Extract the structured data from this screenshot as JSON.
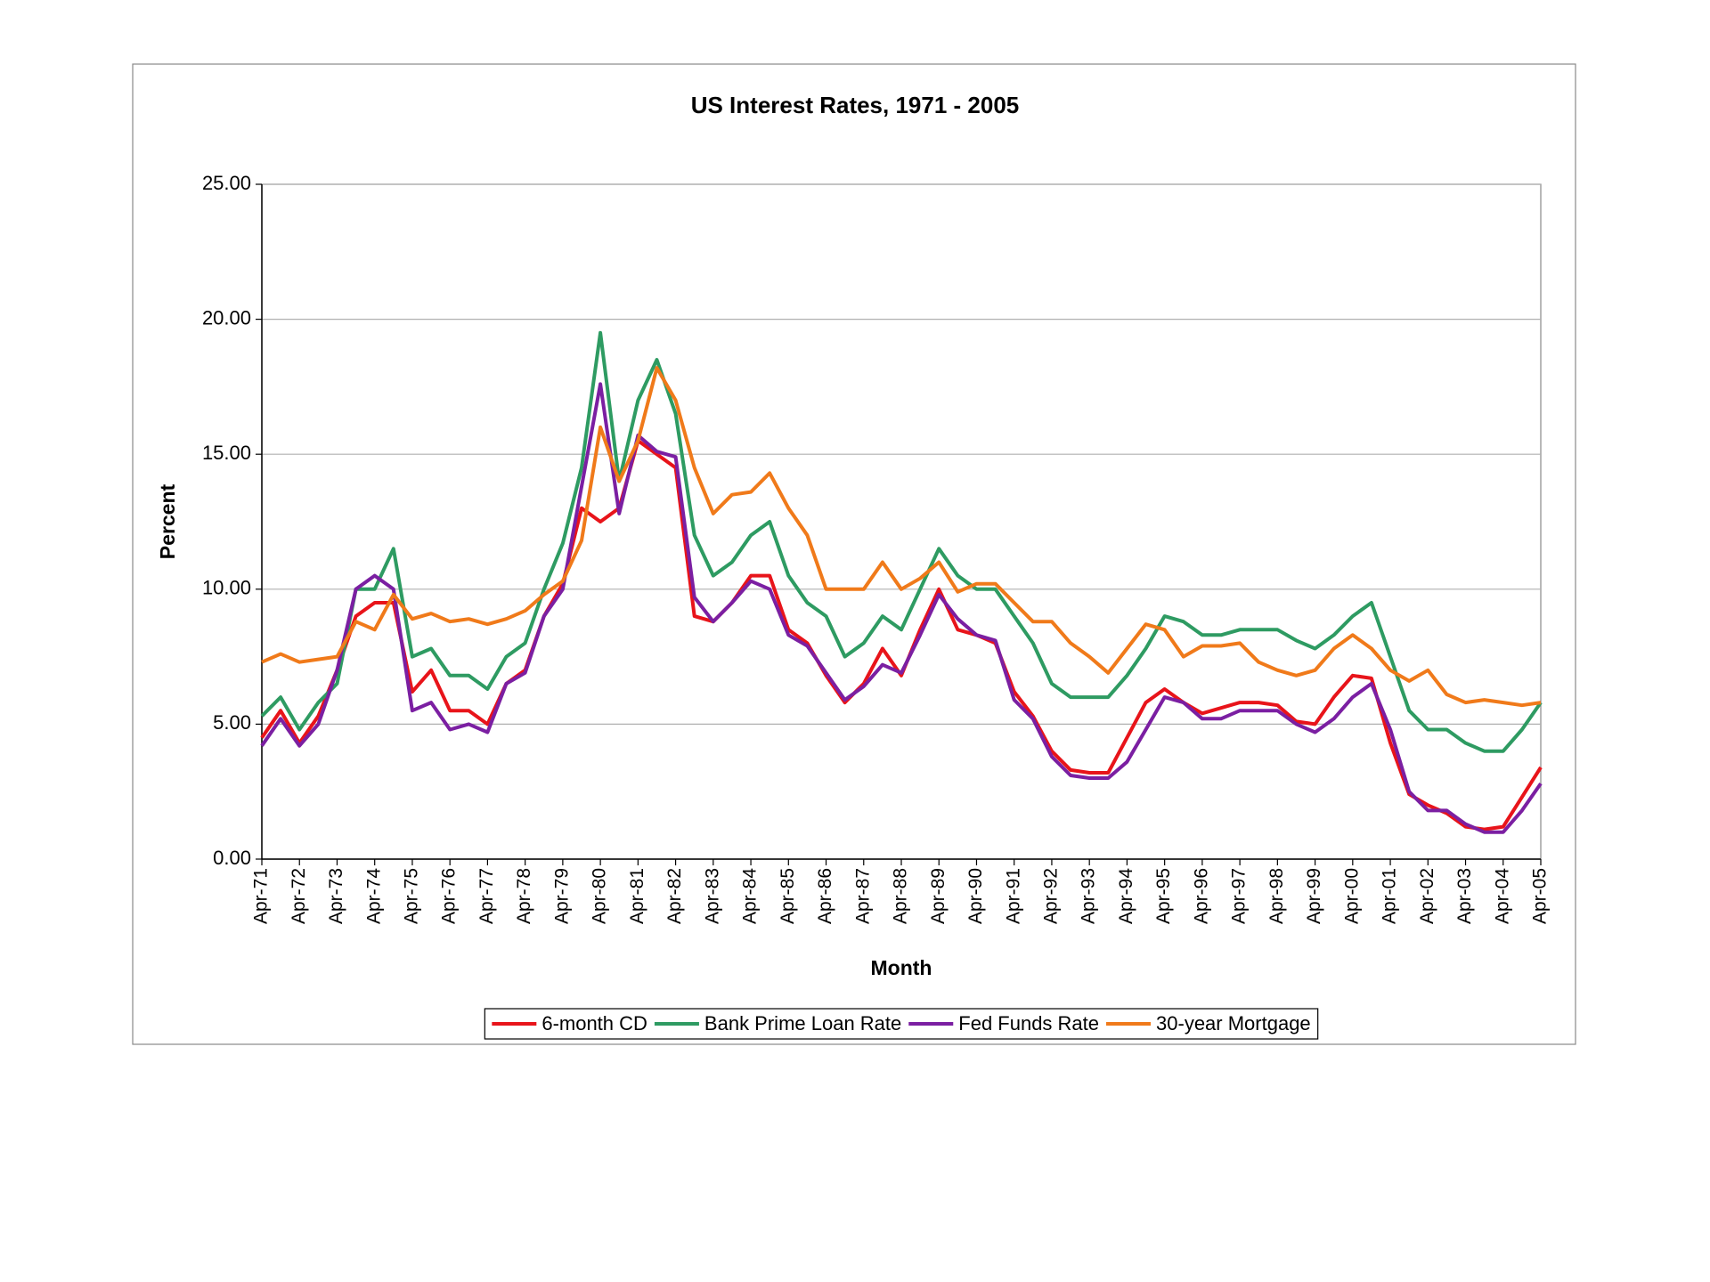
{
  "chart_data": {
    "type": "line",
    "title": "US Interest Rates, 1971 - 2005",
    "x_label": "Month",
    "y_label": "Percent",
    "categories": [
      "Apr-71",
      null,
      "Apr-72",
      null,
      "Apr-73",
      null,
      "Apr-74",
      null,
      "Apr-75",
      null,
      "Apr-76",
      null,
      "Apr-77",
      null,
      "Apr-78",
      null,
      "Apr-79",
      null,
      "Apr-80",
      null,
      "Apr-81",
      null,
      "Apr-82",
      null,
      "Apr-83",
      null,
      "Apr-84",
      null,
      "Apr-85",
      null,
      "Apr-86",
      null,
      "Apr-87",
      null,
      "Apr-88",
      null,
      "Apr-89",
      null,
      "Apr-90",
      null,
      "Apr-91",
      null,
      "Apr-92",
      null,
      "Apr-93",
      null,
      "Apr-94",
      null,
      "Apr-95",
      null,
      "Apr-96",
      null,
      "Apr-97",
      null,
      "Apr-98",
      null,
      "Apr-99",
      null,
      "Apr-00",
      null,
      "Apr-01",
      null,
      "Apr-02",
      null,
      "Apr-03",
      null,
      "Apr-04",
      null,
      "Apr-05"
    ],
    "series": [
      {
        "name": "6-month CD",
        "color": "#e8141a",
        "values": [
          4.5,
          5.5,
          4.3,
          5.3,
          7.0,
          9.0,
          9.5,
          9.5,
          6.2,
          7.0,
          5.5,
          5.5,
          5.0,
          6.5,
          7.0,
          9.0,
          10.2,
          13.0,
          12.5,
          13.0,
          15.5,
          15.0,
          14.5,
          9.0,
          8.8,
          9.5,
          10.5,
          10.5,
          8.5,
          8.0,
          6.8,
          5.8,
          6.5,
          7.8,
          6.8,
          8.5,
          10.0,
          8.5,
          8.3,
          8.0,
          6.2,
          5.3,
          4.0,
          3.3,
          3.2,
          3.2,
          4.5,
          5.8,
          6.3,
          5.8,
          5.4,
          5.6,
          5.8,
          5.8,
          5.7,
          5.1,
          5.0,
          6.0,
          6.8,
          6.7,
          4.3,
          2.4,
          2.0,
          1.7,
          1.2,
          1.1,
          1.2,
          2.3,
          3.4
        ]
      },
      {
        "name": "Bank Prime Loan Rate",
        "color": "#2e9b62",
        "values": [
          5.3,
          6.0,
          4.8,
          5.8,
          6.5,
          10.0,
          10.0,
          11.5,
          7.5,
          7.8,
          6.8,
          6.8,
          6.3,
          7.5,
          8.0,
          10.0,
          11.7,
          14.5,
          19.5,
          14.0,
          17.0,
          18.5,
          16.5,
          12.0,
          10.5,
          11.0,
          12.0,
          12.5,
          10.5,
          9.5,
          9.0,
          7.5,
          8.0,
          9.0,
          8.5,
          10.0,
          11.5,
          10.5,
          10.0,
          10.0,
          9.0,
          8.0,
          6.5,
          6.0,
          6.0,
          6.0,
          6.8,
          7.8,
          9.0,
          8.8,
          8.3,
          8.3,
          8.5,
          8.5,
          8.5,
          8.1,
          7.8,
          8.3,
          9.0,
          9.5,
          7.5,
          5.5,
          4.8,
          4.8,
          4.3,
          4.0,
          4.0,
          4.8,
          5.8
        ]
      },
      {
        "name": "Fed Funds Rate",
        "color": "#7b1fa2",
        "values": [
          4.2,
          5.2,
          4.2,
          5.0,
          7.0,
          10.0,
          10.5,
          10.0,
          5.5,
          5.8,
          4.8,
          5.0,
          4.7,
          6.5,
          6.9,
          9.0,
          10.0,
          13.8,
          17.6,
          12.8,
          15.7,
          15.1,
          14.9,
          9.7,
          8.8,
          9.5,
          10.3,
          10.0,
          8.3,
          7.9,
          6.9,
          5.9,
          6.4,
          7.2,
          6.9,
          8.3,
          9.8,
          8.9,
          8.3,
          8.1,
          5.9,
          5.2,
          3.8,
          3.1,
          3.0,
          3.0,
          3.6,
          4.8,
          6.0,
          5.8,
          5.2,
          5.2,
          5.5,
          5.5,
          5.5,
          5.0,
          4.7,
          5.2,
          6.0,
          6.5,
          4.8,
          2.5,
          1.8,
          1.8,
          1.3,
          1.0,
          1.0,
          1.8,
          2.8
        ]
      },
      {
        "name": "30-year Mortgage",
        "color": "#f07a1a",
        "values": [
          7.3,
          7.6,
          7.3,
          7.4,
          7.5,
          8.8,
          8.5,
          9.8,
          8.9,
          9.1,
          8.8,
          8.9,
          8.7,
          8.9,
          9.2,
          9.8,
          10.3,
          11.8,
          16.0,
          14.0,
          15.5,
          18.2,
          17.0,
          14.5,
          12.8,
          13.5,
          13.6,
          14.3,
          13.0,
          12.0,
          10.0,
          10.0,
          10.0,
          11.0,
          10.0,
          10.4,
          11.0,
          9.9,
          10.2,
          10.2,
          9.5,
          8.8,
          8.8,
          8.0,
          7.5,
          6.9,
          7.8,
          8.7,
          8.5,
          7.5,
          7.9,
          7.9,
          8.0,
          7.3,
          7.0,
          6.8,
          7.0,
          7.8,
          8.3,
          7.8,
          7.0,
          6.6,
          7.0,
          6.1,
          5.8,
          5.9,
          5.8,
          5.7,
          5.8
        ]
      }
    ],
    "ylim": [
      0,
      25
    ],
    "yticks": [
      {
        "value": 0,
        "label": "0.00"
      },
      {
        "value": 5,
        "label": "5.00"
      },
      {
        "value": 10,
        "label": "10.00"
      },
      {
        "value": 15,
        "label": "15.00"
      },
      {
        "value": 20,
        "label": "20.00"
      },
      {
        "value": 25,
        "label": "25.00"
      }
    ],
    "grid": true,
    "legend": "bottom"
  }
}
